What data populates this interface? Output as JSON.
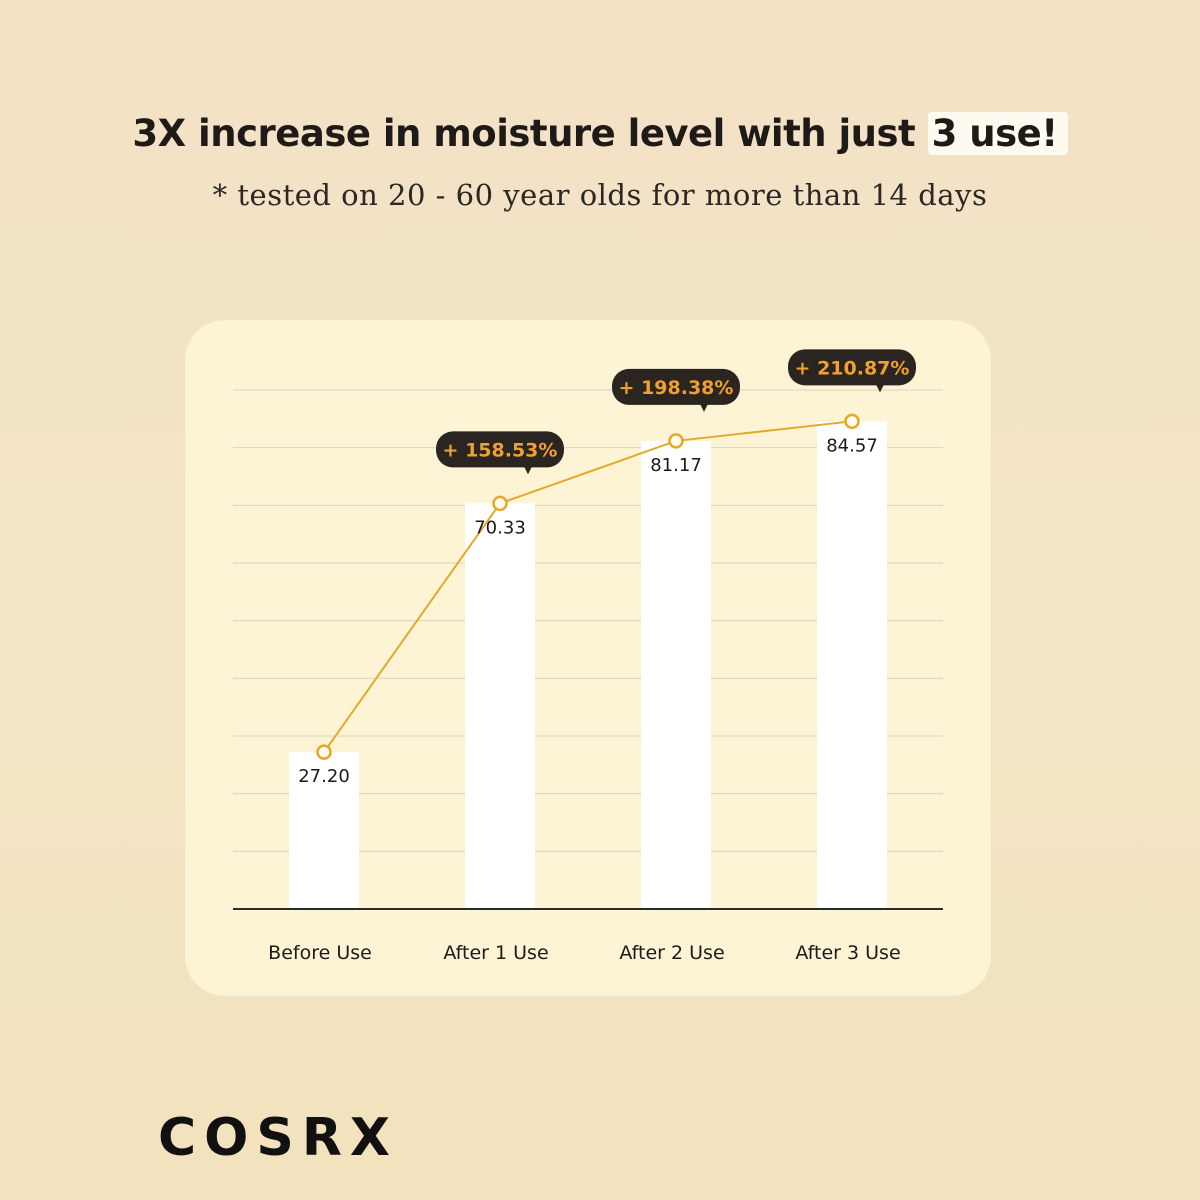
{
  "header": {
    "headline_main": "3X increase in moisture level with just",
    "headline_highlight": "3 use!",
    "subline": "* tested on 20 - 60 year olds for more than 14 days"
  },
  "brand": {
    "logo_text": "COSRX"
  },
  "colors": {
    "bar": "#ffffff",
    "line": "#e2a92a",
    "callout_bg": "#2a2520",
    "callout_text": "#f0a02e",
    "grid": "#d9d3c4",
    "axis": "#2b2b2b"
  },
  "chart_data": {
    "type": "bar",
    "categories": [
      "Before Use",
      "After 1 Use",
      "After 2 Use",
      "After 3 Use"
    ],
    "values": [
      27.2,
      70.33,
      81.17,
      84.57
    ],
    "value_labels": [
      "27.20",
      "70.33",
      "81.17",
      "84.57"
    ],
    "overlay_line": true,
    "increase_callouts": [
      "",
      "+ 158.53%",
      "+ 198.38%",
      "+ 210.87%"
    ],
    "ylim": [
      0,
      90
    ],
    "grid": true,
    "title": "",
    "xlabel": "",
    "ylabel": ""
  }
}
